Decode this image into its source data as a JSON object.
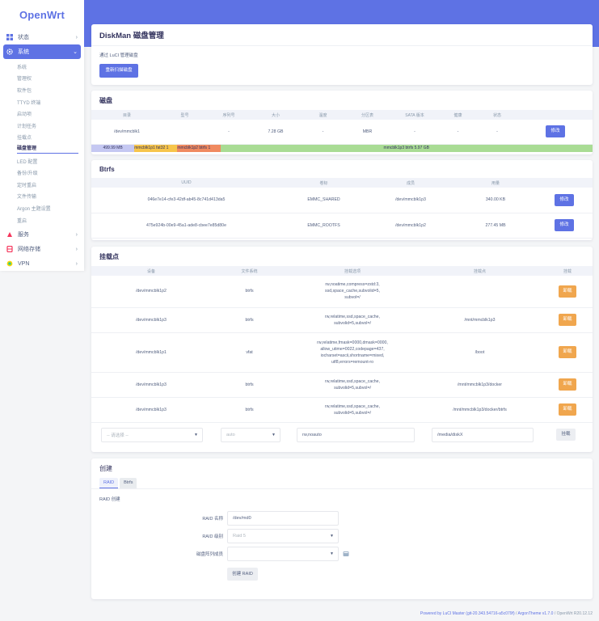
{
  "brand": "OpenWrt",
  "sidebar": {
    "items": [
      {
        "label": "状态",
        "icon": "dashboard-icon"
      },
      {
        "label": "系统",
        "icon": "gear-icon"
      },
      {
        "label": "服务",
        "icon": "services-icon"
      },
      {
        "label": "网络存储",
        "icon": "storage-icon"
      },
      {
        "label": "VPN",
        "icon": "vpn-icon"
      }
    ],
    "system_sub": [
      "系统",
      "管理权",
      "软件包",
      "TTYD 终端",
      "启动项",
      "计划任务",
      "挂载点",
      "磁盘管理",
      "LED 配置",
      "备份/升级",
      "定时重启",
      "文件传输",
      "Argon 主题设置",
      "重启"
    ]
  },
  "page": {
    "title": "DiskMan 磁盘管理",
    "description": "通过 LuCI 管理磁盘",
    "rescan_label": "重新扫描磁盘"
  },
  "disks": {
    "title": "磁盘",
    "headers": [
      "目录",
      "型号",
      "序列号",
      "大小",
      "温度",
      "分区表",
      "SATA 版本",
      "健康",
      "状态",
      ""
    ],
    "rows": [
      [
        "/dev/mmcblk1",
        "",
        "-",
        "7.28 GB",
        "-",
        "MBR",
        "-",
        "-",
        "-"
      ]
    ],
    "edit_label": "修改",
    "partitions": [
      {
        "label": "499.99 MB",
        "share": 0.0858,
        "color": "#c5c8f2"
      },
      {
        "label": "mmcblk1p1 fat32 1",
        "share": 0.0858,
        "color": "#f7c54a"
      },
      {
        "label": "mmcblk1p2 btrfs 1",
        "share": 0.0858,
        "color": "#f08a60"
      },
      {
        "label": "mmcblk1p3 btrfs 5.97 GB",
        "share": 0.7426,
        "color": "#a9dc94"
      }
    ]
  },
  "btrfs": {
    "title": "Btrfs",
    "headers": [
      "UUID",
      "卷标",
      "成员",
      "用量",
      ""
    ],
    "rows": [
      [
        "046e7e14-cfe3-42df-ab45-8c741d413da5",
        "EMMC_SHARED",
        "/dev/mmcblk1p3",
        "340.00 KB"
      ],
      [
        "475e924b-00e9-45a1-ade8-cbee7e85d80e",
        "EMMC_ROOTFS",
        "/dev/mmcblk1p2",
        "277.45 MB"
      ]
    ],
    "edit_label": "修改"
  },
  "mounts": {
    "title": "挂载点",
    "headers": [
      "设备",
      "文件系统",
      "挂载选项",
      "挂载点",
      "挂载"
    ],
    "rows": [
      {
        "device": "/dev/mmcblk1p2",
        "fs": "btrfs",
        "opts": [
          "rw,noatime,compress=zstd:3,",
          "ssd,space_cache,subvolid=5,",
          "subvol=/"
        ],
        "point": ""
      },
      {
        "device": "/dev/mmcblk1p3",
        "fs": "btrfs",
        "opts": [
          "rw,relatime,ssd,space_cache,",
          "subvolid=5,subvol=/"
        ],
        "point": "/mnt/mmcblk1p3"
      },
      {
        "device": "/dev/mmcblk1p1",
        "fs": "vfat",
        "opts": [
          "rw,relatime,fmask=0000,dmask=0000,",
          "allow_utime=0022,codepage=437,",
          "iocharset=ascii,shortname=mixed,",
          "utf8,errors=remount-ro"
        ],
        "point": "/boot"
      },
      {
        "device": "/dev/mmcblk1p3",
        "fs": "btrfs",
        "opts": [
          "rw,relatime,ssd,space_cache,",
          "subvolid=5,subvol=/"
        ],
        "point": "/mnt/mmcblk1p3/docker"
      },
      {
        "device": "/dev/mmcblk1p3",
        "fs": "btrfs",
        "opts": [
          "rw,relatime,ssd,space_cache,",
          "subvolid=5,subvol=/"
        ],
        "point": "/mnt/mmcblk1p3/docker/btrfs"
      }
    ],
    "unmount_label": "卸载",
    "new": {
      "device_placeholder": "-- 请选择 --",
      "fs_value": "auto",
      "opts_value": "rw,noauto",
      "point_value": "/media/diskX",
      "mount_label": "挂载"
    }
  },
  "create": {
    "title": "创建",
    "tabs": [
      "RAID",
      "Btrfs"
    ],
    "section": "RAID 创建",
    "name_label": "RAID 名称",
    "name_value": "/dev/md0",
    "level_label": "RAID 级别",
    "level_value": "Raid 5",
    "members_label": "磁盘阵列成员",
    "submit_label": "创建 RAID"
  },
  "footer": {
    "powered": "Powered by LuCI Master (git-20.343.54716-a5c079f)",
    "theme": "ArgonTheme v1.7.0",
    "version": "OpenWrt R20.12.12"
  }
}
